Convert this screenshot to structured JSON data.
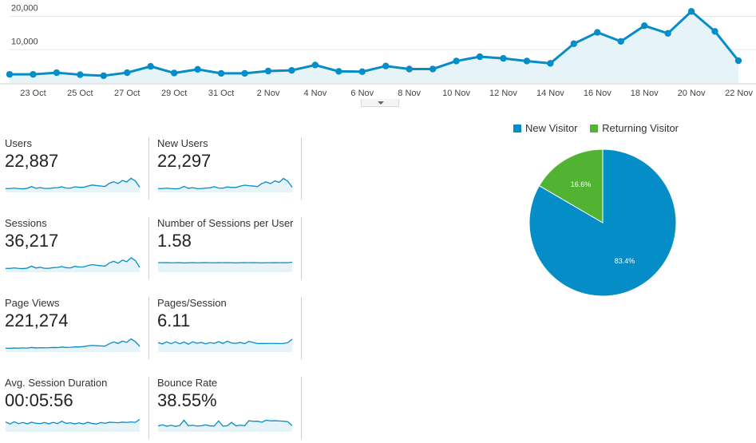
{
  "overview": {
    "chart_data": {
      "type": "area",
      "y_ticks": [
        10000,
        20000
      ],
      "y_tick_labels": [
        "10,000",
        "20,000"
      ],
      "x_tick_labels": [
        "23 Oct",
        "25 Oct",
        "27 Oct",
        "29 Oct",
        "31 Oct",
        "2 Nov",
        "4 Nov",
        "6 Nov",
        "8 Nov",
        "10 Nov",
        "12 Nov",
        "14 Nov",
        "16 Nov",
        "18 Nov",
        "20 Nov",
        "22 Nov"
      ],
      "ylim": [
        0,
        23000
      ],
      "values": [
        2600,
        2600,
        3100,
        2500,
        2200,
        3100,
        5000,
        3000,
        4100,
        2900,
        2900,
        3600,
        3800,
        5400,
        3500,
        3400,
        5100,
        4200,
        4200,
        6600,
        7900,
        7400,
        6600,
        5900,
        11800,
        15200,
        12500,
        17200,
        14900,
        21500,
        15500,
        6700
      ],
      "color": "#058dc7",
      "fill": "#e6f3f9"
    }
  },
  "metrics": [
    {
      "label": "Users",
      "value": "22,887",
      "chart_data": {
        "type": "area",
        "values": [
          3,
          3,
          3.4,
          3,
          2.8,
          3.2,
          4.6,
          3.2,
          3.8,
          3.1,
          3.1,
          3.5,
          3.7,
          4.4,
          3.4,
          3.3,
          4.4,
          4,
          4,
          5,
          5.8,
          5.4,
          5,
          4.7,
          7.2,
          8.4,
          7,
          9.4,
          8.2,
          11.2,
          9,
          4
        ]
      }
    },
    {
      "label": "New Users",
      "value": "22,297",
      "chart_data": {
        "type": "area",
        "values": [
          3,
          3,
          3.3,
          3,
          2.8,
          3.1,
          4.7,
          3.2,
          3.7,
          3,
          3,
          3.4,
          3.6,
          4.5,
          3.4,
          3.3,
          4.3,
          3.9,
          3.9,
          5,
          5.7,
          5.3,
          5,
          4.6,
          7,
          8.3,
          6.9,
          9.1,
          8,
          11,
          8.8,
          4
        ]
      }
    },
    {
      "label": "Sessions",
      "value": "36,217",
      "chart_data": {
        "type": "area",
        "values": [
          3,
          3,
          3.4,
          3,
          2.8,
          3.2,
          4.8,
          3.3,
          3.9,
          3.1,
          3.1,
          3.6,
          3.8,
          4.5,
          3.5,
          3.4,
          4.6,
          4.1,
          4.1,
          5.2,
          6,
          5.5,
          5.1,
          4.8,
          7.4,
          8.6,
          7.1,
          9.6,
          8.3,
          11.4,
          9.2,
          3.8
        ]
      }
    },
    {
      "label": "Number of Sessions per User",
      "value": "1.58",
      "chart_data": {
        "type": "area",
        "values": [
          7.6,
          7.5,
          7.6,
          7.4,
          7.5,
          7.6,
          7.3,
          7.5,
          7.6,
          7.4,
          7.5,
          7.6,
          7.5,
          7.4,
          7.6,
          7.5,
          7.6,
          7.5,
          7.4,
          7.5,
          7.6,
          7.5,
          7.6,
          7.5,
          7.4,
          7.5,
          7.5,
          7.6,
          7.5,
          7.6,
          7.5,
          7.9
        ]
      }
    },
    {
      "label": "Page Views",
      "value": "221,274",
      "chart_data": {
        "type": "area",
        "values": [
          3,
          2.9,
          3.2,
          3,
          3.3,
          3.1,
          3.6,
          3.2,
          3.4,
          3.3,
          3.4,
          3.6,
          3.5,
          3.9,
          3.6,
          3.7,
          4,
          4,
          4.3,
          4.9,
          5.2,
          5,
          4.8,
          4.7,
          6.6,
          8,
          6.8,
          8.6,
          7.6,
          10.4,
          8.2,
          4.5
        ]
      }
    },
    {
      "label": "Pages/Session",
      "value": "6.11",
      "chart_data": {
        "type": "area",
        "values": [
          7.5,
          6.4,
          8,
          6.6,
          8,
          6.5,
          7.9,
          6.2,
          8.1,
          6.9,
          7.6,
          6.4,
          7.5,
          6.8,
          8.2,
          6.7,
          8.6,
          7.1,
          6.8,
          7.6,
          6.6,
          8.4,
          7.5,
          6.7,
          6.8,
          6.7,
          6.8,
          6.8,
          6.7,
          6.8,
          7.4,
          10.2
        ]
      }
    },
    {
      "label": "Avg. Session Duration",
      "value": "00:05:56",
      "chart_data": {
        "type": "area",
        "values": [
          7.8,
          6.2,
          8,
          6.4,
          7.4,
          6.3,
          7.6,
          6.8,
          6.5,
          7.4,
          6.3,
          7.5,
          6.5,
          8.4,
          6.7,
          7.2,
          6.3,
          7.1,
          6.2,
          7.6,
          6.6,
          6.2,
          7.4,
          6.7,
          7.6,
          7.4,
          7.2,
          7.7,
          7.4,
          7.8,
          7.5,
          9.8
        ]
      }
    },
    {
      "label": "Bounce Rate",
      "value": "38.55%",
      "chart_data": {
        "type": "area",
        "values": [
          4.6,
          5.6,
          4.4,
          5.2,
          4.3,
          5,
          9.2,
          4.8,
          5.2,
          4.6,
          4.8,
          5.5,
          4.7,
          4.6,
          8.6,
          4.5,
          4.8,
          7.5,
          4.7,
          5.3,
          4.8,
          8.8,
          8.3,
          8.4,
          7.6,
          9.2,
          8.7,
          8.8,
          8.6,
          8.4,
          8,
          4.8
        ]
      }
    }
  ],
  "pie": {
    "legend": [
      {
        "label": "New Visitor",
        "color": "#058dc7"
      },
      {
        "label": "Returning Visitor",
        "color": "#50b432"
      }
    ],
    "chart_data": {
      "type": "pie",
      "slices": [
        {
          "name": "New Visitor",
          "value": 83.4,
          "label": "83.4%",
          "color": "#058dc7"
        },
        {
          "name": "Returning Visitor",
          "value": 16.6,
          "label": "16.6%",
          "color": "#50b432"
        }
      ]
    }
  }
}
